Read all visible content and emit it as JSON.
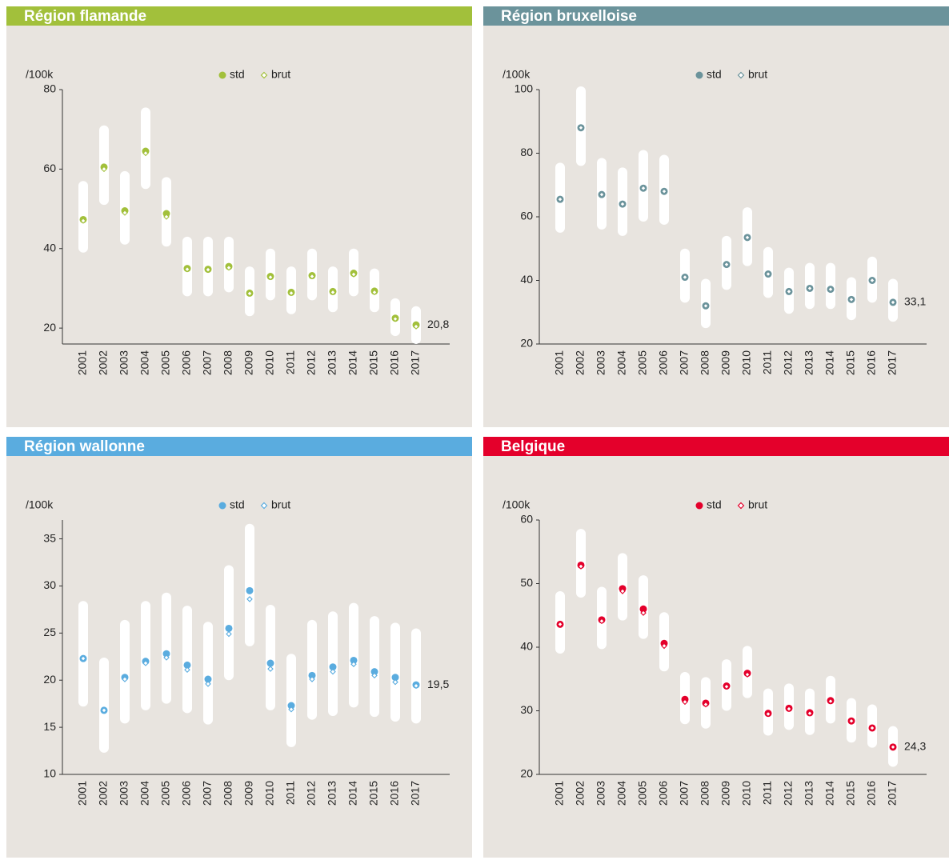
{
  "chart_data": [
    {
      "type": "range-dot",
      "title": "Région flamande",
      "y_label": "/100k",
      "color": "#a2c03b",
      "categories": [
        "2001",
        "2002",
        "2003",
        "2004",
        "2005",
        "2006",
        "2007",
        "2008",
        "2009",
        "2010",
        "2011",
        "2012",
        "2013",
        "2014",
        "2015",
        "2016",
        "2017"
      ],
      "series": [
        {
          "name": "std",
          "color": "#a2c03b",
          "values": [
            47.3,
            60.5,
            49.5,
            64.5,
            48.8,
            35,
            34.8,
            35.5,
            28.8,
            33,
            29,
            33.2,
            29.2,
            33.8,
            29.3,
            22.5,
            20.8
          ],
          "value_labels": [
            null,
            null,
            null,
            null,
            null,
            null,
            null,
            null,
            null,
            null,
            null,
            null,
            null,
            null,
            null,
            null,
            "20,8"
          ]
        },
        {
          "name": "brut",
          "color": "#a2c03b",
          "values": [
            47,
            60,
            49,
            64,
            48,
            34.8,
            34.7,
            35.2,
            28.7,
            32.8,
            28.8,
            33,
            29,
            33.5,
            29,
            22.3,
            20.4
          ]
        }
      ],
      "ranges": [
        [
          39,
          57
        ],
        [
          51,
          71
        ],
        [
          41,
          59.5
        ],
        [
          55,
          75.5
        ],
        [
          40.5,
          58
        ],
        [
          28,
          43
        ],
        [
          28,
          43
        ],
        [
          29,
          43
        ],
        [
          23,
          35.5
        ],
        [
          27,
          40
        ],
        [
          23.5,
          35.5
        ],
        [
          27,
          40
        ],
        [
          24,
          35.5
        ],
        [
          28,
          40
        ],
        [
          24,
          35
        ],
        [
          18,
          27.5
        ],
        [
          16,
          25.5
        ]
      ],
      "ylim": [
        16,
        80
      ],
      "yticks": [
        20,
        40,
        60,
        80
      ],
      "grid": false
    },
    {
      "type": "range-dot",
      "title": "Région bruxelloise",
      "y_label": "/100k",
      "color": "#6b939b",
      "categories": [
        "2001",
        "2002",
        "2003",
        "2004",
        "2005",
        "2006",
        "2007",
        "2008",
        "2009",
        "2010",
        "2011",
        "2012",
        "2013",
        "2014",
        "2015",
        "2016",
        "2017"
      ],
      "series": [
        {
          "name": "std",
          "color": "#6b939b",
          "values": [
            65.5,
            88,
            67,
            64,
            69,
            68,
            41,
            32,
            45,
            53.5,
            42,
            36.5,
            37.5,
            37.2,
            34,
            40,
            33.1
          ],
          "value_labels": [
            null,
            null,
            null,
            null,
            null,
            null,
            null,
            null,
            null,
            null,
            null,
            null,
            null,
            null,
            null,
            null,
            "33,1"
          ]
        },
        {
          "name": "brut",
          "color": "#6b939b",
          "values": [
            65.5,
            88,
            67,
            64,
            69,
            68,
            41,
            32,
            45,
            53.5,
            42,
            36.5,
            37.5,
            37.2,
            34,
            40,
            33.1
          ]
        }
      ],
      "ranges": [
        [
          55,
          77
        ],
        [
          76,
          101
        ],
        [
          56,
          78.5
        ],
        [
          54,
          75.5
        ],
        [
          58.5,
          81
        ],
        [
          57.5,
          79.5
        ],
        [
          33,
          50
        ],
        [
          25,
          40.5
        ],
        [
          37,
          54
        ],
        [
          44.5,
          63
        ],
        [
          34.5,
          50.5
        ],
        [
          29.5,
          44
        ],
        [
          31,
          45.5
        ],
        [
          31,
          45.5
        ],
        [
          27.5,
          41
        ],
        [
          33,
          47.5
        ],
        [
          27,
          40.5
        ]
      ],
      "ylim": [
        20,
        100
      ],
      "yticks": [
        20,
        40,
        60,
        80,
        100
      ],
      "grid": false
    },
    {
      "type": "range-dot",
      "title": "Région wallonne",
      "y_label": "/100k",
      "color": "#5aacdf",
      "categories": [
        "2001",
        "2002",
        "2003",
        "2004",
        "2005",
        "2006",
        "2007",
        "2008",
        "2009",
        "2010",
        "2011",
        "2012",
        "2013",
        "2014",
        "2015",
        "2016",
        "2017"
      ],
      "series": [
        {
          "name": "std",
          "color": "#5aacdf",
          "values": [
            22.3,
            16.8,
            20.3,
            22,
            22.8,
            21.6,
            20.1,
            25.5,
            29.5,
            21.8,
            17.3,
            20.5,
            21.4,
            22.1,
            20.9,
            20.3,
            19.5
          ],
          "value_labels": [
            null,
            null,
            null,
            null,
            null,
            null,
            null,
            null,
            null,
            null,
            null,
            null,
            null,
            null,
            null,
            null,
            "19,5"
          ]
        },
        {
          "name": "brut",
          "color": "#5aacdf",
          "values": [
            22.3,
            16.8,
            20.1,
            21.8,
            22.4,
            21.1,
            19.6,
            24.9,
            28.6,
            21.2,
            16.9,
            20.1,
            20.9,
            21.7,
            20.5,
            19.8,
            19.4
          ]
        }
      ],
      "ranges": [
        [
          17.2,
          28.4
        ],
        [
          12.3,
          22.4
        ],
        [
          15.4,
          26.4
        ],
        [
          16.8,
          28.4
        ],
        [
          17.5,
          29.3
        ],
        [
          16.5,
          27.9
        ],
        [
          15.3,
          26.2
        ],
        [
          20,
          32.2
        ],
        [
          23.6,
          36.6
        ],
        [
          16.8,
          28
        ],
        [
          12.9,
          22.8
        ],
        [
          15.8,
          26.4
        ],
        [
          16.2,
          27.3
        ],
        [
          17.1,
          28.2
        ],
        [
          16.1,
          26.8
        ],
        [
          15.6,
          26.1
        ],
        [
          15.4,
          25.5
        ]
      ],
      "ylim": [
        10,
        37
      ],
      "yticks": [
        10,
        15,
        20,
        25,
        30,
        35
      ],
      "grid": false
    },
    {
      "type": "range-dot",
      "title": "Belgique",
      "y_label": "/100k",
      "color": "#e4002b",
      "categories": [
        "2001",
        "2002",
        "2003",
        "2004",
        "2005",
        "2006",
        "2007",
        "2008",
        "2009",
        "2010",
        "2011",
        "2012",
        "2013",
        "2014",
        "2015",
        "2016",
        "2017"
      ],
      "series": [
        {
          "name": "std",
          "color": "#e4002b",
          "values": [
            43.6,
            52.9,
            44.3,
            49.2,
            46,
            40.6,
            31.8,
            31.2,
            33.9,
            35.9,
            29.6,
            30.4,
            29.7,
            31.6,
            28.4,
            27.3,
            24.3
          ],
          "value_labels": [
            null,
            null,
            null,
            null,
            null,
            null,
            null,
            null,
            null,
            null,
            null,
            null,
            null,
            null,
            null,
            null,
            "24,3"
          ]
        },
        {
          "name": "brut",
          "color": "#e4002b",
          "values": [
            43.6,
            52.7,
            44.1,
            48.8,
            45.4,
            40.2,
            31.4,
            31,
            33.8,
            35.7,
            29.5,
            30.3,
            29.6,
            31.5,
            28.4,
            27.3,
            24.3
          ]
        }
      ],
      "ranges": [
        [
          39,
          48.8
        ],
        [
          47.8,
          58.6
        ],
        [
          39.7,
          49.5
        ],
        [
          44.2,
          54.8
        ],
        [
          41.3,
          51.3
        ],
        [
          36.2,
          45.5
        ],
        [
          27.9,
          36.1
        ],
        [
          27.2,
          35.3
        ],
        [
          30,
          38.1
        ],
        [
          32,
          40.2
        ],
        [
          26.1,
          33.5
        ],
        [
          27,
          34.3
        ],
        [
          26.2,
          33.5
        ],
        [
          28,
          35.5
        ],
        [
          25,
          32
        ],
        [
          24.2,
          31
        ],
        [
          21.2,
          27.6
        ]
      ],
      "ylim": [
        20,
        60
      ],
      "yticks": [
        20,
        30,
        40,
        50,
        60
      ],
      "grid": false
    }
  ]
}
